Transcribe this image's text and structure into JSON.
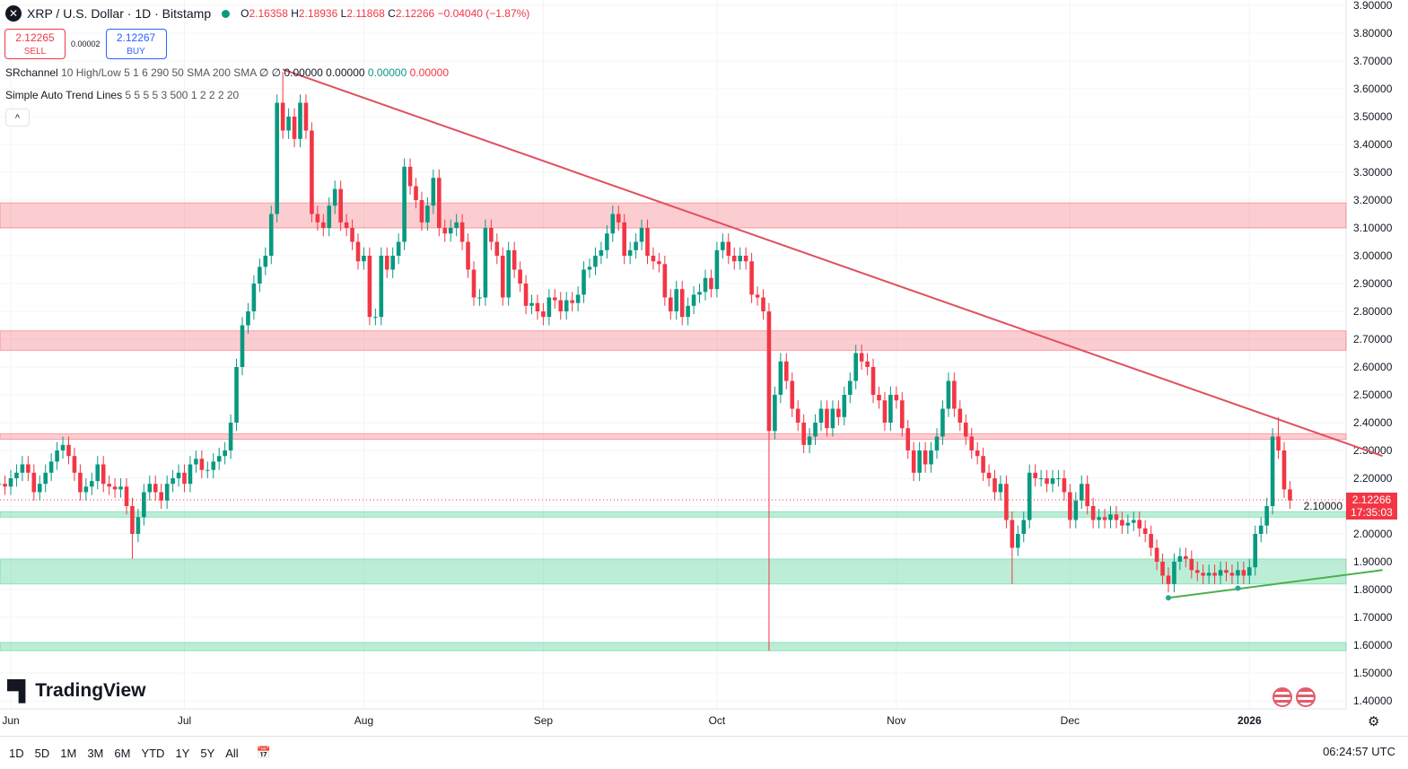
{
  "header": {
    "symbol": "XRP / U.S. Dollar · 1D · Bitstamp",
    "open_label": "O",
    "open": "2.16358",
    "high_label": "H",
    "high": "2.18936",
    "low_label": "L",
    "low": "2.11868",
    "close_label": "C",
    "close": "2.12266",
    "change": "−0.04040 (−1.87%)"
  },
  "trade": {
    "sell_price": "2.12265",
    "sell_label": "SELL",
    "spread": "0.00002",
    "buy_price": "2.12267",
    "buy_label": "BUY"
  },
  "indicators": [
    {
      "name": "SRchannel",
      "params": "10 High/Low 5 1 6 290 50 SMA 200 SMA",
      "values": "∅ ∅ 0.00000 0.00000",
      "v_green": "0.00000",
      "v_red": "0.00000"
    },
    {
      "name": "Simple Auto Trend Lines",
      "params": "5 5 5 5 3 500 1 2 2 2 20"
    }
  ],
  "brand": "TradingView",
  "current_price": {
    "price": "2.12266",
    "countdown": "17:35:03"
  },
  "timeframes": [
    "1D",
    "5D",
    "1M",
    "3M",
    "6M",
    "YTD",
    "1Y",
    "5Y",
    "All"
  ],
  "clock": "06:24:57 UTC",
  "colors": {
    "up": "#089981",
    "down": "#f23645",
    "resistance": "#f23645",
    "support": "#22c77a",
    "downtrend": "#e0505e",
    "uptrend": "#4caf50"
  },
  "chart_data": {
    "type": "candlestick",
    "title": "XRP / U.S. Dollar · 1D · Bitstamp",
    "start_date": "2025-05-30",
    "close": [
      2.18,
      2.17,
      2.2,
      2.22,
      2.25,
      2.22,
      2.15,
      2.18,
      2.22,
      2.26,
      2.3,
      2.32,
      2.28,
      2.22,
      2.15,
      2.17,
      2.19,
      2.25,
      2.18,
      2.17,
      2.16,
      2.17,
      2.1,
      2.0,
      2.06,
      2.15,
      2.18,
      2.15,
      2.12,
      2.18,
      2.2,
      2.22,
      2.18,
      2.25,
      2.27,
      2.23,
      2.23,
      2.26,
      2.28,
      2.3,
      2.4,
      2.6,
      2.75,
      2.8,
      2.9,
      2.96,
      3.0,
      3.15,
      3.55,
      3.45,
      3.5,
      3.42,
      3.55,
      3.45,
      3.15,
      3.12,
      3.1,
      3.18,
      3.24,
      3.12,
      3.1,
      3.05,
      2.98,
      3.0,
      2.78,
      2.78,
      3.0,
      2.95,
      3.0,
      3.05,
      3.32,
      3.25,
      3.2,
      3.12,
      3.18,
      3.28,
      3.1,
      3.08,
      3.1,
      3.12,
      3.05,
      2.95,
      2.85,
      2.85,
      3.1,
      3.05,
      3.0,
      2.85,
      3.02,
      2.95,
      2.9,
      2.82,
      2.83,
      2.8,
      2.78,
      2.85,
      2.84,
      2.8,
      2.84,
      2.83,
      2.86,
      2.95,
      2.96,
      3.0,
      3.02,
      3.08,
      3.15,
      3.12,
      3.0,
      3.02,
      3.05,
      3.1,
      3.0,
      2.98,
      2.97,
      2.85,
      2.8,
      2.88,
      2.78,
      2.82,
      2.86,
      2.87,
      2.92,
      2.88,
      3.02,
      3.05,
      3.0,
      2.98,
      3.0,
      2.98,
      2.86,
      2.85,
      2.8,
      2.37,
      2.5,
      2.62,
      2.55,
      2.45,
      2.4,
      2.32,
      2.35,
      2.4,
      2.45,
      2.38,
      2.45,
      2.42,
      2.5,
      2.55,
      2.65,
      2.62,
      2.6,
      2.5,
      2.48,
      2.4,
      2.5,
      2.48,
      2.38,
      2.3,
      2.22,
      2.3,
      2.25,
      2.3,
      2.35,
      2.45,
      2.55,
      2.45,
      2.4,
      2.35,
      2.3,
      2.28,
      2.22,
      2.2,
      2.15,
      2.18,
      2.05,
      1.95,
      2.0,
      2.05,
      2.22,
      2.2,
      2.2,
      2.18,
      2.2,
      2.2,
      2.15,
      2.05,
      2.12,
      2.18,
      2.1,
      2.05,
      2.06,
      2.05,
      2.07,
      2.05,
      2.03,
      2.04,
      2.05,
      2.02,
      2.0,
      1.95,
      1.9,
      1.85,
      1.82,
      1.9,
      1.92,
      1.91,
      1.87,
      1.86,
      1.85,
      1.86,
      1.85,
      1.87,
      1.86,
      1.85,
      1.87,
      1.85,
      1.88,
      2.0,
      2.03,
      2.1,
      2.35,
      2.3,
      2.16,
      2.12
    ],
    "notable_extremes": {
      "2025-07-18": {
        "high": 3.66
      },
      "2025-10-10": {
        "low": 1.58
      },
      "2025-06-22": {
        "low": 1.91
      },
      "2025-11-21": {
        "low": 1.82
      },
      "2026-01-06": {
        "high": 2.42
      }
    },
    "resistance_zones": [
      [
        3.1,
        3.19
      ],
      [
        2.66,
        2.73
      ],
      [
        2.34,
        2.36
      ]
    ],
    "support_zones": [
      [
        2.06,
        2.08
      ],
      [
        1.82,
        1.91
      ],
      [
        1.58,
        1.61
      ]
    ],
    "trend_lines": [
      {
        "kind": "down",
        "from": [
          "2025-07-18",
          3.67
        ],
        "to": [
          "2026-01-24",
          2.28
        ]
      },
      {
        "kind": "up",
        "from": [
          "2025-12-18",
          1.77
        ],
        "to": [
          "2026-01-24",
          1.87
        ]
      }
    ],
    "y_ticks": [
      "3.90000",
      "3.80000",
      "3.70000",
      "3.60000",
      "3.50000",
      "3.40000",
      "3.30000",
      "3.20000",
      "3.10000",
      "3.00000",
      "2.90000",
      "2.80000",
      "2.70000",
      "2.60000",
      "2.50000",
      "2.40000",
      "2.30000",
      "2.20000",
      "2.10000",
      "2.00000",
      "1.90000",
      "1.80000",
      "1.70000",
      "1.60000",
      "1.50000",
      "1.40000"
    ],
    "x_ticks": [
      {
        "label": "Jun",
        "date": "2025-06-01"
      },
      {
        "label": "Jul",
        "date": "2025-07-01"
      },
      {
        "label": "Aug",
        "date": "2025-08-01"
      },
      {
        "label": "Sep",
        "date": "2025-09-01"
      },
      {
        "label": "Oct",
        "date": "2025-10-01"
      },
      {
        "label": "Nov",
        "date": "2025-11-01"
      },
      {
        "label": "Dec",
        "date": "2025-12-01"
      },
      {
        "label": "2026",
        "date": "2026-01-01"
      }
    ],
    "ylim": [
      1.4,
      3.9
    ]
  }
}
